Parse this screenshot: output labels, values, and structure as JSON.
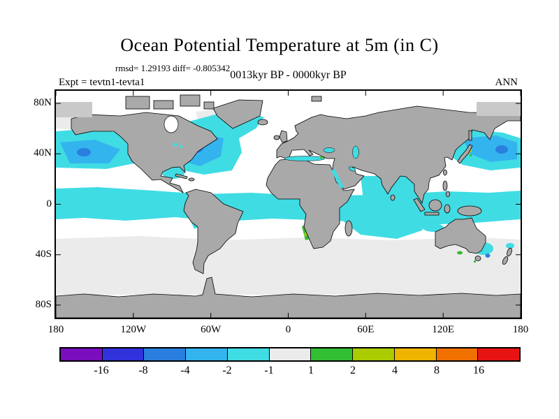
{
  "title": "Ocean Potential Temperature at 5m (in C)",
  "stats_line": "rmsd= 1.29193 diff= -0.805342",
  "period": "0013kyr BP - 0000kyr BP",
  "experiment_label": "Expt = tevtn1-tevta1",
  "season": "ANN",
  "chart_data": {
    "type": "heatmap",
    "title": "Ocean Potential Temperature at 5m (in C)",
    "subtitle": "0013kyr BP - 0000kyr BP",
    "stats": {
      "rmsd": 1.29193,
      "diff": -0.805342
    },
    "experiment": "tevtn1-tevta1",
    "season": "ANN",
    "units": "C",
    "projection": "equirectangular world map",
    "lon_range": [
      -180,
      180
    ],
    "lat_range": [
      -90,
      90
    ],
    "x_ticks": [
      "180",
      "120W",
      "60W",
      "0",
      "60E",
      "120E",
      "180"
    ],
    "y_ticks": [
      "80N",
      "40N",
      "0",
      "40S",
      "80S"
    ],
    "colorbar": {
      "levels": [
        "-16",
        "-8",
        "-4",
        "-2",
        "-1",
        "1",
        "2",
        "4",
        "8",
        "16"
      ],
      "colors": [
        "#7A0DBE",
        "#3232DC",
        "#2A7FDE",
        "#33B4EE",
        "#40DCE4",
        "#EBEBEB",
        "#33BE33",
        "#AACC00",
        "#EEB400",
        "#F07000",
        "#E81414"
      ]
    },
    "map_colors": {
      "land": "#A9A9A9",
      "ice": "#C9C9C9",
      "ocean": "#FFFFFF"
    },
    "features": [
      {
        "region": "North Atlantic (~30-55N)",
        "anomaly": "-4 to -1 C cooling, strongest core -4 to -2 C"
      },
      {
        "region": "Northwest Pacific off Japan",
        "anomaly": "-4 to -2 C cooling with small +1 to +4 C coastal spots"
      },
      {
        "region": "Northeast Pacific (~40N, near date line)",
        "anomaly": "-4 to -1 C cooling"
      },
      {
        "region": "Tropical Pacific, Atlantic and Indian Oceans",
        "anomaly": "-2 to -1 C cooling band"
      },
      {
        "region": "Benguela coast (SW Africa)",
        "anomaly": "+1 to +4 C warming strip"
      },
      {
        "region": "South of Australia / Tasman Sea",
        "anomaly": "mixed -2 to +2 C patches"
      },
      {
        "region": "Mid- and high-latitude southern oceans and polar seas",
        "anomaly": "-1 to +1 C (near neutral gray)"
      }
    ]
  }
}
